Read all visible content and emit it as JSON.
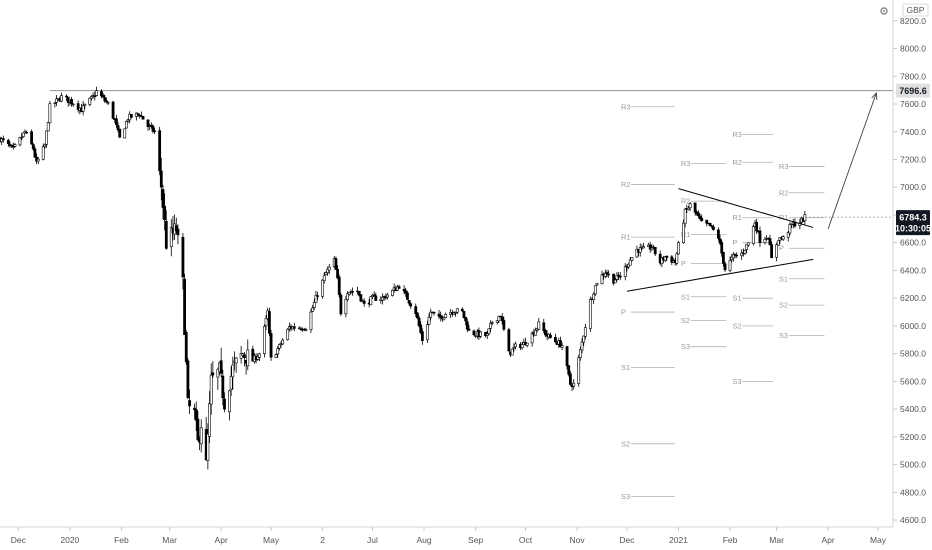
{
  "chart_data": {
    "type": "candlestick",
    "currency": "GBP",
    "icon": "settings-gear-icon",
    "y_axis": {
      "range": [
        4550,
        8350
      ],
      "ticks": [
        4600,
        4800,
        5000,
        5200,
        5400,
        5600,
        5800,
        6000,
        6200,
        6400,
        6600,
        6800,
        7000,
        7200,
        7400,
        7600,
        7800,
        8000,
        8200
      ],
      "tick_labels": [
        "4600.0",
        "4800.0",
        "5000.0",
        "5200.0",
        "5400.0",
        "5600.0",
        "5800.0",
        "6000.0",
        "6200.0",
        "6400.0",
        "6600.0",
        "6800.0",
        "7000.0",
        "7200.0",
        "7400.0",
        "7600.0",
        "7800.0",
        "8000.0",
        "8200.0"
      ]
    },
    "x_axis": {
      "range": [
        "2019-11-20",
        "2021-05-10"
      ],
      "ticks": [
        {
          "date": "2019-12-01",
          "label": "Dec"
        },
        {
          "date": "2020-01-01",
          "label": "2020"
        },
        {
          "date": "2020-02-01",
          "label": "Feb"
        },
        {
          "date": "2020-03-01",
          "label": "Mar"
        },
        {
          "date": "2020-04-01",
          "label": "Apr"
        },
        {
          "date": "2020-05-01",
          "label": "May"
        },
        {
          "date": "2020-06-01",
          "label": "2"
        },
        {
          "date": "2020-07-01",
          "label": "Jul"
        },
        {
          "date": "2020-08-01",
          "label": "Aug"
        },
        {
          "date": "2020-09-01",
          "label": "Sep"
        },
        {
          "date": "2020-10-01",
          "label": "Oct"
        },
        {
          "date": "2020-11-01",
          "label": "Nov"
        },
        {
          "date": "2020-12-01",
          "label": "Dec"
        },
        {
          "date": "2021-01-01",
          "label": "2021"
        },
        {
          "date": "2021-02-01",
          "label": "Feb"
        },
        {
          "date": "2021-03-01",
          "label": "Mar"
        },
        {
          "date": "2021-04-01",
          "label": "Apr"
        },
        {
          "date": "2021-05-01",
          "label": "May"
        }
      ]
    },
    "price_path": [
      [
        "2019-11-20",
        7350
      ],
      [
        "2019-11-28",
        7270
      ],
      [
        "2019-12-05",
        7400
      ],
      [
        "2019-12-10",
        7280
      ],
      [
        "2019-12-12",
        7170
      ],
      [
        "2019-12-17",
        7300
      ],
      [
        "2019-12-20",
        7580
      ],
      [
        "2019-12-27",
        7650
      ],
      [
        "2020-01-03",
        7610
      ],
      [
        "2020-01-08",
        7560
      ],
      [
        "2020-01-15",
        7650
      ],
      [
        "2020-01-17",
        7690
      ],
      [
        "2020-01-24",
        7600
      ],
      [
        "2020-01-28",
        7480
      ],
      [
        "2020-01-31",
        7350
      ],
      [
        "2020-02-05",
        7500
      ],
      [
        "2020-02-12",
        7530
      ],
      [
        "2020-02-17",
        7440
      ],
      [
        "2020-02-21",
        7400
      ],
      [
        "2020-02-25",
        7010
      ],
      [
        "2020-02-28",
        6600
      ],
      [
        "2020-03-05",
        6700
      ],
      [
        "2020-03-09",
        6300
      ],
      [
        "2020-03-12",
        5420
      ],
      [
        "2020-03-16",
        5360
      ],
      [
        "2020-03-18",
        5150
      ],
      [
        "2020-03-20",
        5300
      ],
      [
        "2020-03-23",
        4990
      ],
      [
        "2020-03-26",
        5600
      ],
      [
        "2020-03-31",
        5670
      ],
      [
        "2020-04-03",
        5450
      ],
      [
        "2020-04-08",
        5690
      ],
      [
        "2020-04-14",
        5800
      ],
      [
        "2020-04-20",
        5750
      ],
      [
        "2020-04-24",
        5800
      ],
      [
        "2020-04-29",
        6100
      ],
      [
        "2020-05-01",
        5760
      ],
      [
        "2020-05-06",
        5850
      ],
      [
        "2020-05-12",
        5990
      ],
      [
        "2020-05-18",
        5990
      ],
      [
        "2020-05-22",
        5990
      ],
      [
        "2020-05-28",
        6200
      ],
      [
        "2020-06-03",
        6380
      ],
      [
        "2020-06-08",
        6470
      ],
      [
        "2020-06-10",
        6330
      ],
      [
        "2020-06-12",
        6100
      ],
      [
        "2020-06-16",
        6250
      ],
      [
        "2020-06-22",
        6250
      ],
      [
        "2020-06-26",
        6150
      ],
      [
        "2020-07-01",
        6200
      ],
      [
        "2020-07-07",
        6200
      ],
      [
        "2020-07-13",
        6250
      ],
      [
        "2020-07-17",
        6290
      ],
      [
        "2020-07-22",
        6200
      ],
      [
        "2020-07-27",
        6100
      ],
      [
        "2020-07-31",
        5900
      ],
      [
        "2020-08-05",
        6100
      ],
      [
        "2020-08-10",
        6050
      ],
      [
        "2020-08-14",
        6090
      ],
      [
        "2020-08-19",
        6110
      ],
      [
        "2020-08-24",
        6100
      ],
      [
        "2020-08-28",
        5960
      ],
      [
        "2020-09-02",
        5940
      ],
      [
        "2020-09-08",
        5930
      ],
      [
        "2020-09-11",
        6030
      ],
      [
        "2020-09-16",
        6080
      ],
      [
        "2020-09-21",
        5800
      ],
      [
        "2020-09-25",
        5850
      ],
      [
        "2020-09-30",
        5870
      ],
      [
        "2020-10-05",
        5940
      ],
      [
        "2020-10-09",
        6010
      ],
      [
        "2020-10-14",
        5930
      ],
      [
        "2020-10-19",
        5890
      ],
      [
        "2020-10-23",
        5860
      ],
      [
        "2020-10-28",
        5580
      ],
      [
        "2020-10-30",
        5580
      ],
      [
        "2020-11-04",
        5880
      ],
      [
        "2020-11-09",
        6180
      ],
      [
        "2020-11-13",
        6320
      ],
      [
        "2020-11-18",
        6390
      ],
      [
        "2020-11-23",
        6330
      ],
      [
        "2020-11-27",
        6360
      ],
      [
        "2020-12-02",
        6460
      ],
      [
        "2020-12-07",
        6550
      ],
      [
        "2020-12-11",
        6550
      ],
      [
        "2020-12-16",
        6570
      ],
      [
        "2020-12-21",
        6460
      ],
      [
        "2020-12-24",
        6500
      ],
      [
        "2020-12-30",
        6460
      ],
      [
        "2021-01-05",
        6820
      ],
      [
        "2021-01-08",
        6870
      ],
      [
        "2021-01-12",
        6800
      ],
      [
        "2021-01-15",
        6740
      ],
      [
        "2021-01-20",
        6720
      ],
      [
        "2021-01-25",
        6640
      ],
      [
        "2021-01-29",
        6410
      ],
      [
        "2021-02-03",
        6500
      ],
      [
        "2021-02-08",
        6520
      ],
      [
        "2021-02-12",
        6600
      ],
      [
        "2021-02-16",
        6750
      ],
      [
        "2021-02-19",
        6620
      ],
      [
        "2021-02-24",
        6650
      ],
      [
        "2021-02-26",
        6480
      ],
      [
        "2021-03-02",
        6630
      ],
      [
        "2021-03-05",
        6630
      ],
      [
        "2021-03-10",
        6730
      ],
      [
        "2021-03-15",
        6750
      ],
      [
        "2021-03-18",
        6780
      ]
    ],
    "horizontal_line": {
      "value": 7696.6,
      "label": "7696.6"
    },
    "current_price": {
      "value": 6784.3,
      "label": "6784.3",
      "countdown": "10:30:05"
    },
    "trendlines": [
      {
        "from": [
          "2021-01-01",
          6990
        ],
        "to": [
          "2021-03-23",
          6710
        ]
      },
      {
        "from": [
          "2020-12-01",
          6250
        ],
        "to": [
          "2021-03-23",
          6480
        ]
      }
    ],
    "projection_arrow": {
      "from": [
        "2021-04-01",
        6700
      ],
      "to": [
        "2021-04-30",
        7680
      ]
    },
    "pivot_levels": [
      {
        "label": "R3",
        "value": 7580,
        "from": "2020-11-25",
        "to": "2020-12-31"
      },
      {
        "label": "R2",
        "value": 7020,
        "from": "2020-11-25",
        "to": "2020-12-31"
      },
      {
        "label": "R1",
        "value": 6640,
        "from": "2020-11-25",
        "to": "2020-12-31"
      },
      {
        "label": "P",
        "value": 6100,
        "from": "2020-11-25",
        "to": "2020-12-31"
      },
      {
        "label": "S1",
        "value": 5700,
        "from": "2020-11-25",
        "to": "2020-12-31"
      },
      {
        "label": "S2",
        "value": 5150,
        "from": "2020-11-25",
        "to": "2020-12-31"
      },
      {
        "label": "S3",
        "value": 4770,
        "from": "2020-11-25",
        "to": "2020-12-31"
      },
      {
        "label": "R3",
        "value": 7170,
        "from": "2020-12-31",
        "to": "2021-01-31"
      },
      {
        "label": "R2",
        "value": 6900,
        "from": "2020-12-31",
        "to": "2021-01-31"
      },
      {
        "label": "R1",
        "value": 6660,
        "from": "2020-12-31",
        "to": "2021-01-31"
      },
      {
        "label": "P",
        "value": 6450,
        "from": "2020-12-31",
        "to": "2021-01-31"
      },
      {
        "label": "S1",
        "value": 6210,
        "from": "2020-12-31",
        "to": "2021-01-31"
      },
      {
        "label": "S2",
        "value": 6040,
        "from": "2020-12-31",
        "to": "2021-01-31"
      },
      {
        "label": "S3",
        "value": 5850,
        "from": "2020-12-31",
        "to": "2021-01-31"
      },
      {
        "label": "R3",
        "value": 7380,
        "from": "2021-01-31",
        "to": "2021-02-28"
      },
      {
        "label": "R2",
        "value": 7180,
        "from": "2021-01-31",
        "to": "2021-02-28"
      },
      {
        "label": "R1",
        "value": 6780,
        "from": "2021-01-31",
        "to": "2021-02-28"
      },
      {
        "label": "P",
        "value": 6600,
        "from": "2021-01-31",
        "to": "2021-02-28"
      },
      {
        "label": "S1",
        "value": 6200,
        "from": "2021-01-31",
        "to": "2021-02-28"
      },
      {
        "label": "S2",
        "value": 6000,
        "from": "2021-01-31",
        "to": "2021-02-28"
      },
      {
        "label": "S3",
        "value": 5600,
        "from": "2021-01-31",
        "to": "2021-02-28"
      },
      {
        "label": "R3",
        "value": 7150,
        "from": "2021-02-28",
        "to": "2021-03-31"
      },
      {
        "label": "R2",
        "value": 6960,
        "from": "2021-02-28",
        "to": "2021-03-31"
      },
      {
        "label": "R1",
        "value": 6780,
        "from": "2021-02-28",
        "to": "2021-03-31"
      },
      {
        "label": "P",
        "value": 6560,
        "from": "2021-02-28",
        "to": "2021-03-31"
      },
      {
        "label": "S1",
        "value": 6340,
        "from": "2021-02-28",
        "to": "2021-03-31"
      },
      {
        "label": "S2",
        "value": 6150,
        "from": "2021-02-28",
        "to": "2021-03-31"
      },
      {
        "label": "S3",
        "value": 5930,
        "from": "2021-02-28",
        "to": "2021-03-31"
      }
    ],
    "colors": {
      "candle": "#000000",
      "pivot": "#b0b0b0",
      "badge_dark": "#131722",
      "badge_light": "#e0e0e0"
    }
  }
}
